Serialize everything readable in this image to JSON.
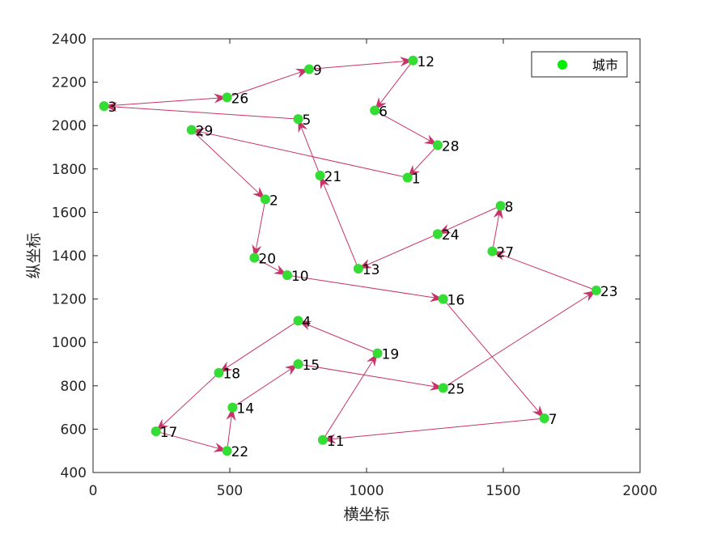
{
  "chart_data": {
    "type": "scatter",
    "title": "",
    "xlabel": "横坐标",
    "ylabel": "纵坐标",
    "xlim": [
      0,
      2000
    ],
    "ylim": [
      400,
      2400
    ],
    "xticks": [
      0,
      500,
      1000,
      1500,
      2000
    ],
    "yticks": [
      400,
      600,
      800,
      1000,
      1200,
      1400,
      1600,
      1800,
      2000,
      2200,
      2400
    ],
    "grid": false,
    "legend": {
      "entries": [
        "城市"
      ],
      "placement": "top-right"
    },
    "colors": {
      "points": "#33dd33",
      "legend_marker": "#00ee00",
      "route": "#c8336a"
    },
    "points": [
      {
        "id": "1",
        "x": 1150,
        "y": 1760
      },
      {
        "id": "2",
        "x": 630,
        "y": 1660
      },
      {
        "id": "3",
        "x": 40,
        "y": 2090
      },
      {
        "id": "4",
        "x": 750,
        "y": 1100
      },
      {
        "id": "5",
        "x": 750,
        "y": 2030
      },
      {
        "id": "6",
        "x": 1030,
        "y": 2070
      },
      {
        "id": "7",
        "x": 1650,
        "y": 650
      },
      {
        "id": "8",
        "x": 1490,
        "y": 1630
      },
      {
        "id": "9",
        "x": 790,
        "y": 2260
      },
      {
        "id": "10",
        "x": 710,
        "y": 1310
      },
      {
        "id": "11",
        "x": 840,
        "y": 550
      },
      {
        "id": "12",
        "x": 1170,
        "y": 2300
      },
      {
        "id": "13",
        "x": 970,
        "y": 1340
      },
      {
        "id": "14",
        "x": 510,
        "y": 700
      },
      {
        "id": "15",
        "x": 750,
        "y": 900
      },
      {
        "id": "16",
        "x": 1280,
        "y": 1200
      },
      {
        "id": "17",
        "x": 230,
        "y": 590
      },
      {
        "id": "18",
        "x": 460,
        "y": 860
      },
      {
        "id": "19",
        "x": 1040,
        "y": 950
      },
      {
        "id": "20",
        "x": 590,
        "y": 1390
      },
      {
        "id": "21",
        "x": 830,
        "y": 1770
      },
      {
        "id": "22",
        "x": 490,
        "y": 500
      },
      {
        "id": "23",
        "x": 1840,
        "y": 1240
      },
      {
        "id": "24",
        "x": 1260,
        "y": 1500
      },
      {
        "id": "25",
        "x": 1280,
        "y": 790
      },
      {
        "id": "26",
        "x": 490,
        "y": 2130
      },
      {
        "id": "27",
        "x": 1460,
        "y": 1420
      },
      {
        "id": "28",
        "x": 1260,
        "y": 1910
      },
      {
        "id": "29",
        "x": 360,
        "y": 1980
      }
    ],
    "route": [
      "1",
      "29",
      "2",
      "20",
      "10",
      "16",
      "7",
      "11",
      "19",
      "4",
      "18",
      "17",
      "22",
      "14",
      "15",
      "25",
      "23",
      "27",
      "8",
      "24",
      "13",
      "21",
      "5",
      "3",
      "26",
      "9",
      "12",
      "6",
      "28",
      "1"
    ]
  }
}
